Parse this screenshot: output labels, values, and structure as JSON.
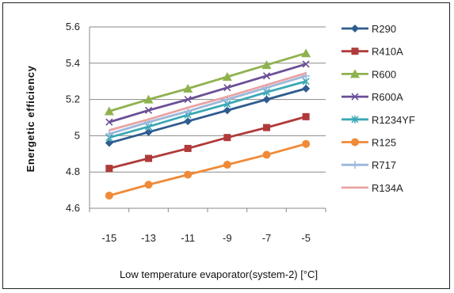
{
  "chart_data": {
    "type": "line",
    "xlabel": "Low temperature evaporator(system-2) [°C]",
    "ylabel": "Energetic efficiency",
    "x": [
      -15,
      -13,
      -11,
      -9,
      -7,
      -5
    ],
    "x_tick_labels": [
      "-15",
      "-13",
      "-11",
      "-9",
      "-7",
      "-5"
    ],
    "ylim": [
      4.6,
      5.6
    ],
    "y_ticks": [
      4.6,
      4.8,
      5.0,
      5.2,
      5.4,
      5.6
    ],
    "y_tick_labels": [
      "4.6",
      "4.8",
      "5",
      "5.2",
      "5.4",
      "5.6"
    ],
    "grid": "horizontal",
    "legend_position": "right",
    "series": [
      {
        "name": "R290",
        "color": "#2F5C8F",
        "marker": "diamond",
        "values": [
          4.96,
          5.02,
          5.08,
          5.14,
          5.2,
          5.26
        ]
      },
      {
        "name": "R410A",
        "color": "#B03A3A",
        "marker": "square",
        "values": [
          4.82,
          4.875,
          4.93,
          4.99,
          5.045,
          5.105
        ]
      },
      {
        "name": "R600",
        "color": "#8FB24F",
        "marker": "triangle",
        "values": [
          5.135,
          5.2,
          5.26,
          5.325,
          5.39,
          5.455
        ]
      },
      {
        "name": "R600A",
        "color": "#6B4F96",
        "marker": "x",
        "values": [
          5.075,
          5.14,
          5.2,
          5.265,
          5.33,
          5.395
        ]
      },
      {
        "name": "R1234YF",
        "color": "#3AA8B5",
        "marker": "star",
        "values": [
          4.99,
          5.05,
          5.115,
          5.175,
          5.24,
          5.3
        ]
      },
      {
        "name": "R125",
        "color": "#F08A38",
        "marker": "circle",
        "values": [
          4.67,
          4.73,
          4.785,
          4.84,
          4.895,
          4.955
        ]
      },
      {
        "name": "R717",
        "color": "#9BB8DC",
        "marker": "plus",
        "values": [
          5.01,
          5.075,
          5.135,
          5.2,
          5.265,
          5.33
        ]
      },
      {
        "name": "R134A",
        "color": "#E8A3A3",
        "marker": "none",
        "values": [
          5.03,
          5.09,
          5.155,
          5.215,
          5.28,
          5.345
        ]
      }
    ]
  }
}
